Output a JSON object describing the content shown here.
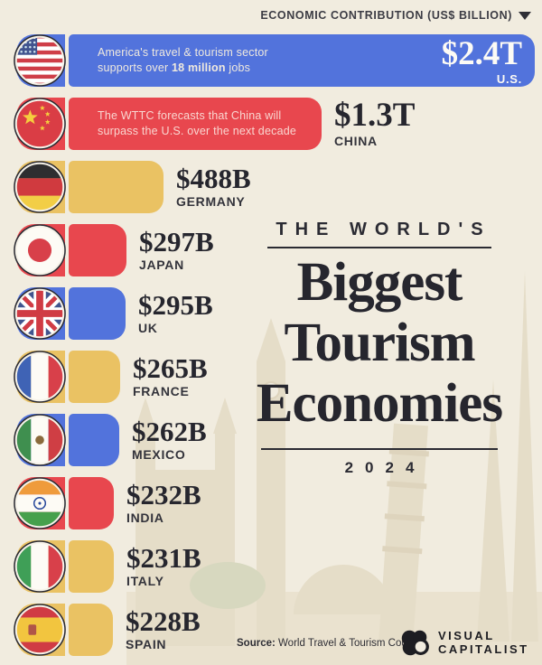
{
  "header": {
    "label": "ECONOMIC CONTRIBUTION (US$ BILLION)",
    "sort_icon": "triangle-down-icon"
  },
  "title": {
    "kicker": "THE WORLD'S",
    "line1": "Biggest",
    "line2": "Tourism",
    "line3": "Economies",
    "year": "2024"
  },
  "footer": {
    "source_label": "Source:",
    "source_text": "World Travel & Tourism Council",
    "brand_line1": "VISUAL",
    "brand_line2": "CAPITALIST",
    "brand_icon": "visual-capitalist-logo"
  },
  "colors": {
    "background": "#f1ecdf",
    "blue": "#5273dc",
    "red": "#e8474e",
    "gold": "#eac263",
    "ink": "#2b2b33"
  },
  "chart_data": {
    "type": "bar",
    "orientation": "horizontal",
    "title": "The World's Biggest Tourism Economies 2024",
    "unit": "US$ billion",
    "xlabel": "ECONOMIC CONTRIBUTION (US$ BILLION)",
    "sorted": "descending",
    "categories": [
      "U.S.",
      "CHINA",
      "GERMANY",
      "JAPAN",
      "UK",
      "FRANCE",
      "MEXICO",
      "INDIA",
      "ITALY",
      "SPAIN"
    ],
    "values": [
      2400,
      1300,
      488,
      297,
      295,
      265,
      262,
      232,
      231,
      228
    ],
    "value_labels": [
      "$2.4T",
      "$1.3T",
      "$488B",
      "$297B",
      "$295B",
      "$265B",
      "$262B",
      "$232B",
      "$231B",
      "$228B"
    ],
    "colors": [
      "blue",
      "red",
      "gold",
      "red",
      "blue",
      "gold",
      "blue",
      "red",
      "gold",
      "gold"
    ],
    "flags": [
      "us",
      "cn",
      "de",
      "jp",
      "gb",
      "fr",
      "mx",
      "in",
      "it",
      "es"
    ],
    "value_inside": [
      true,
      false,
      false,
      false,
      false,
      false,
      false,
      false,
      false,
      false
    ],
    "annotations": [
      {
        "index": 0,
        "lines": [
          [
            {
              "t": "America's travel & tourism sector"
            }
          ],
          [
            {
              "t": "supports over "
            },
            {
              "t": "18 million",
              "b": true
            },
            {
              "t": " jobs"
            }
          ]
        ]
      },
      {
        "index": 1,
        "lines": [
          [
            {
              "t": "The WTTC forecasts that China will"
            }
          ],
          [
            {
              "t": "surpass the U.S. over the next decade"
            }
          ]
        ]
      }
    ],
    "source": "World Travel & Tourism Council"
  }
}
